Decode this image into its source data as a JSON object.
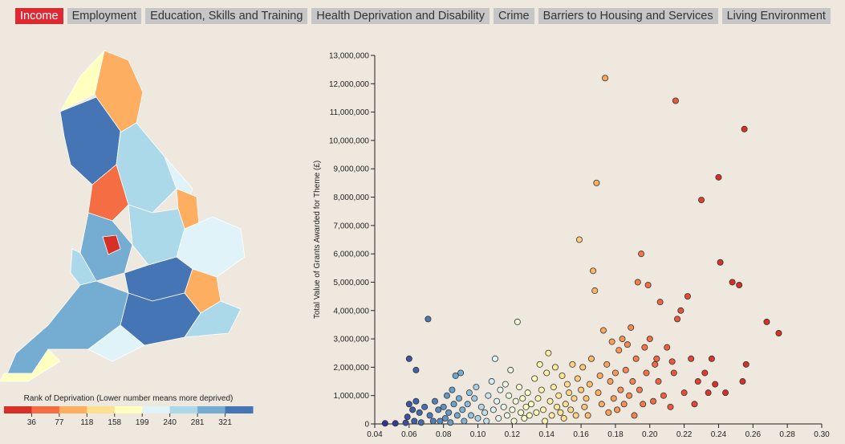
{
  "tabs": [
    {
      "label": "Income",
      "active": true
    },
    {
      "label": "Employment",
      "active": false
    },
    {
      "label": "Education, Skills and Training",
      "active": false
    },
    {
      "label": "Health Deprivation and Disability",
      "active": false
    },
    {
      "label": "Crime",
      "active": false
    },
    {
      "label": "Barriers to Housing and Services",
      "active": false
    },
    {
      "label": "Living Environment",
      "active": false
    }
  ],
  "map": {
    "description_icon": "england-local-authority-choropleth-map"
  },
  "legend": {
    "title": "Rank of Deprivation (Lower number means more deprived)",
    "ticks": [
      "36",
      "77",
      "118",
      "158",
      "199",
      "240",
      "281",
      "321"
    ],
    "colors": [
      "#d73027",
      "#f46d43",
      "#fdae61",
      "#fee090",
      "#ffffbf",
      "#e0f3f8",
      "#abd9e9",
      "#74add1",
      "#4575b4"
    ]
  },
  "chart_data": {
    "type": "scatter",
    "xlabel": "",
    "ylabel": "Total Value of Grants Awarded for Theme (£)",
    "xlim": [
      0.04,
      0.3
    ],
    "ylim": [
      0,
      13000000
    ],
    "x_ticks": [
      "0.04",
      "0.06",
      "0.08",
      "0.10",
      "0.12",
      "0.14",
      "0.16",
      "0.18",
      "0.20",
      "0.22",
      "0.24",
      "0.26",
      "0.28",
      "0.30"
    ],
    "y_ticks": [
      "0",
      "1,000,000",
      "2,000,000",
      "3,000,000",
      "4,000,000",
      "5,000,000",
      "6,000,000",
      "7,000,000",
      "8,000,000",
      "9,000,000",
      "10,000,000",
      "11,000,000",
      "12,000,000",
      "13,000,000"
    ],
    "points": [
      [
        0.046,
        20000
      ],
      [
        0.052,
        20000
      ],
      [
        0.058,
        40000
      ],
      [
        0.059,
        250000
      ],
      [
        0.06,
        700000
      ],
      [
        0.062,
        500000
      ],
      [
        0.063,
        100000
      ],
      [
        0.064,
        800000
      ],
      [
        0.066,
        400000
      ],
      [
        0.067,
        50000
      ],
      [
        0.069,
        600000
      ],
      [
        0.071,
        3700000
      ],
      [
        0.06,
        2300000
      ],
      [
        0.064,
        1900000
      ],
      [
        0.072,
        300000
      ],
      [
        0.074,
        100000
      ],
      [
        0.075,
        800000
      ],
      [
        0.077,
        500000
      ],
      [
        0.078,
        100000
      ],
      [
        0.08,
        600000
      ],
      [
        0.081,
        200000
      ],
      [
        0.082,
        1000000
      ],
      [
        0.083,
        400000
      ],
      [
        0.084,
        50000
      ],
      [
        0.085,
        1200000
      ],
      [
        0.086,
        700000
      ],
      [
        0.087,
        1700000
      ],
      [
        0.088,
        300000
      ],
      [
        0.089,
        900000
      ],
      [
        0.09,
        1800000
      ],
      [
        0.091,
        500000
      ],
      [
        0.092,
        100000
      ],
      [
        0.094,
        700000
      ],
      [
        0.095,
        1100000
      ],
      [
        0.096,
        300000
      ],
      [
        0.098,
        900000
      ],
      [
        0.099,
        1300000
      ],
      [
        0.1,
        200000
      ],
      [
        0.102,
        600000
      ],
      [
        0.104,
        400000
      ],
      [
        0.105,
        100000
      ],
      [
        0.106,
        1000000
      ],
      [
        0.108,
        1500000
      ],
      [
        0.109,
        500000
      ],
      [
        0.11,
        2300000
      ],
      [
        0.111,
        800000
      ],
      [
        0.112,
        200000
      ],
      [
        0.113,
        1200000
      ],
      [
        0.115,
        600000
      ],
      [
        0.116,
        1400000
      ],
      [
        0.117,
        300000
      ],
      [
        0.118,
        1000000
      ],
      [
        0.119,
        1900000
      ],
      [
        0.12,
        500000
      ],
      [
        0.121,
        100000
      ],
      [
        0.122,
        800000
      ],
      [
        0.123,
        3600000
      ],
      [
        0.124,
        1300000
      ],
      [
        0.125,
        400000
      ],
      [
        0.126,
        900000
      ],
      [
        0.127,
        200000
      ],
      [
        0.128,
        600000
      ],
      [
        0.129,
        1100000
      ],
      [
        0.13,
        300000
      ],
      [
        0.131,
        700000
      ],
      [
        0.133,
        1600000
      ],
      [
        0.134,
        400000
      ],
      [
        0.135,
        900000
      ],
      [
        0.136,
        2100000
      ],
      [
        0.137,
        1200000
      ],
      [
        0.138,
        500000
      ],
      [
        0.139,
        100000
      ],
      [
        0.14,
        1800000
      ],
      [
        0.141,
        2500000
      ],
      [
        0.142,
        800000
      ],
      [
        0.143,
        300000
      ],
      [
        0.144,
        1300000
      ],
      [
        0.145,
        2000000
      ],
      [
        0.146,
        600000
      ],
      [
        0.147,
        1000000
      ],
      [
        0.148,
        400000
      ],
      [
        0.149,
        1700000
      ],
      [
        0.15,
        200000
      ],
      [
        0.151,
        700000
      ],
      [
        0.152,
        1400000
      ],
      [
        0.153,
        1100000
      ],
      [
        0.154,
        500000
      ],
      [
        0.155,
        2100000
      ],
      [
        0.156,
        900000
      ],
      [
        0.157,
        300000
      ],
      [
        0.158,
        1600000
      ],
      [
        0.159,
        6500000
      ],
      [
        0.16,
        1200000
      ],
      [
        0.161,
        2000000
      ],
      [
        0.162,
        600000
      ],
      [
        0.163,
        900000
      ],
      [
        0.164,
        300000
      ],
      [
        0.165,
        1400000
      ],
      [
        0.166,
        2300000
      ],
      [
        0.167,
        5400000
      ],
      [
        0.168,
        4700000
      ],
      [
        0.169,
        8500000
      ],
      [
        0.17,
        1100000
      ],
      [
        0.171,
        1700000
      ],
      [
        0.172,
        700000
      ],
      [
        0.173,
        3300000
      ],
      [
        0.174,
        12200000
      ],
      [
        0.175,
        2100000
      ],
      [
        0.176,
        400000
      ],
      [
        0.177,
        1500000
      ],
      [
        0.178,
        2900000
      ],
      [
        0.179,
        900000
      ],
      [
        0.18,
        1800000
      ],
      [
        0.181,
        500000
      ],
      [
        0.182,
        2600000
      ],
      [
        0.183,
        1200000
      ],
      [
        0.184,
        3000000
      ],
      [
        0.185,
        700000
      ],
      [
        0.186,
        1900000
      ],
      [
        0.187,
        2800000
      ],
      [
        0.188,
        1000000
      ],
      [
        0.189,
        3400000
      ],
      [
        0.19,
        1500000
      ],
      [
        0.191,
        300000
      ],
      [
        0.192,
        2300000
      ],
      [
        0.193,
        5000000
      ],
      [
        0.194,
        1200000
      ],
      [
        0.195,
        6000000
      ],
      [
        0.196,
        700000
      ],
      [
        0.197,
        2700000
      ],
      [
        0.198,
        1800000
      ],
      [
        0.199,
        4900000
      ],
      [
        0.2,
        3000000
      ],
      [
        0.202,
        800000
      ],
      [
        0.203,
        2100000
      ],
      [
        0.204,
        2300000
      ],
      [
        0.205,
        1500000
      ],
      [
        0.206,
        4300000
      ],
      [
        0.208,
        1000000
      ],
      [
        0.21,
        2700000
      ],
      [
        0.212,
        600000
      ],
      [
        0.213,
        2200000
      ],
      [
        0.214,
        1800000
      ],
      [
        0.215,
        11400000
      ],
      [
        0.216,
        3700000
      ],
      [
        0.218,
        4000000
      ],
      [
        0.22,
        1100000
      ],
      [
        0.222,
        4500000
      ],
      [
        0.224,
        2300000
      ],
      [
        0.226,
        700000
      ],
      [
        0.228,
        1500000
      ],
      [
        0.23,
        7900000
      ],
      [
        0.232,
        1800000
      ],
      [
        0.234,
        1100000
      ],
      [
        0.236,
        2300000
      ],
      [
        0.238,
        1400000
      ],
      [
        0.24,
        8700000
      ],
      [
        0.241,
        5700000
      ],
      [
        0.244,
        1100000
      ],
      [
        0.248,
        5000000
      ],
      [
        0.252,
        4900000
      ],
      [
        0.254,
        1500000
      ],
      [
        0.255,
        10400000
      ],
      [
        0.256,
        2100000
      ],
      [
        0.268,
        3600000
      ],
      [
        0.275,
        3200000
      ]
    ]
  }
}
